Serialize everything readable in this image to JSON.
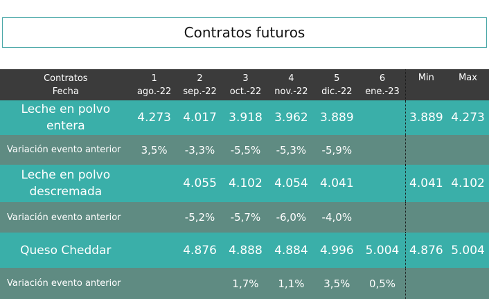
{
  "title": "Contratos futuros",
  "header": {
    "label_top": "Contratos",
    "label_bottom": "Fecha",
    "months": [
      {
        "num": "1",
        "date": "ago.-22"
      },
      {
        "num": "2",
        "date": "sep.-22"
      },
      {
        "num": "3",
        "date": "oct.-22"
      },
      {
        "num": "4",
        "date": "nov.-22"
      },
      {
        "num": "5",
        "date": "dic.-22"
      },
      {
        "num": "6",
        "date": "ene.-23"
      }
    ],
    "min": "Min",
    "max": "Max"
  },
  "rows": [
    {
      "label_a": "Leche en polvo",
      "label_b": "entera",
      "values": [
        "4.273",
        "4.017",
        "3.918",
        "3.962",
        "3.889",
        ""
      ],
      "min": "3.889",
      "max": "4.273"
    },
    {
      "label": "Variación evento anterior",
      "values": [
        "3,5%",
        "-3,3%",
        "-5,5%",
        "-5,3%",
        "-5,9%",
        ""
      ],
      "min": "",
      "max": ""
    },
    {
      "label_a": "Leche en polvo",
      "label_b": "descremada",
      "values": [
        "",
        "4.055",
        "4.102",
        "4.054",
        "4.041",
        ""
      ],
      "min": "4.041",
      "max": "4.102"
    },
    {
      "label": "Variación evento anterior",
      "values": [
        "",
        "-5,2%",
        "-5,7%",
        "-6,0%",
        "-4,0%",
        ""
      ],
      "min": "",
      "max": ""
    },
    {
      "label": "Queso Cheddar",
      "values": [
        "",
        "4.876",
        "4.888",
        "4.884",
        "4.996",
        "5.004"
      ],
      "min": "4.876",
      "max": "5.004"
    },
    {
      "label": "Variación evento anterior",
      "values": [
        "",
        "",
        "1,7%",
        "1,1%",
        "3,5%",
        "0,5%"
      ],
      "min": "",
      "max": ""
    }
  ],
  "colors": {
    "header_bg": "#3b3b3b",
    "product_row": "#3aafa9",
    "variation_row": "#5f8b82",
    "title_border": "#4aa8a8"
  }
}
